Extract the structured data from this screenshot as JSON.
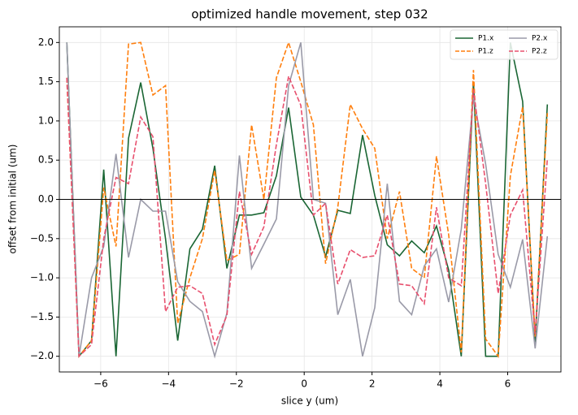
{
  "chart_data": {
    "type": "line",
    "title": "optimized handle movement, step 032",
    "xlabel": "slice y (um)",
    "ylabel": "offset from initial (um)",
    "x": [
      -7.0,
      -6.64,
      -6.27,
      -5.91,
      -5.55,
      -5.18,
      -4.82,
      -4.46,
      -4.09,
      -3.73,
      -3.37,
      -3.0,
      -2.64,
      -2.28,
      -1.91,
      -1.55,
      -1.19,
      -0.82,
      -0.46,
      -0.1,
      0.27,
      0.63,
      0.99,
      1.36,
      1.72,
      2.08,
      2.45,
      2.81,
      3.17,
      3.54,
      3.9,
      4.26,
      4.63,
      4.99,
      5.35,
      5.72,
      6.08,
      6.44,
      6.81,
      7.17
    ],
    "series": [
      {
        "name": "P1.x",
        "color": "#1a6634",
        "linestyle": "solid",
        "values": [
          2.0,
          -2.0,
          -1.8,
          0.38,
          -2.0,
          0.78,
          1.49,
          0.65,
          -0.5,
          -1.8,
          -0.63,
          -0.38,
          0.43,
          -0.88,
          -0.2,
          -0.2,
          -0.17,
          0.3,
          1.17,
          0.03,
          -0.2,
          -0.73,
          -0.14,
          -0.18,
          0.82,
          0.05,
          -0.58,
          -0.72,
          -0.53,
          -0.68,
          -0.34,
          -0.9,
          -2.0,
          1.5,
          -2.0,
          -2.0,
          2.0,
          1.25,
          -1.82,
          1.21
        ]
      },
      {
        "name": "P1.z",
        "color": "#ff7f0e",
        "linestyle": "dashed",
        "values": [
          1.55,
          -2.0,
          -1.8,
          0.15,
          -0.6,
          1.98,
          2.0,
          1.33,
          1.45,
          -1.58,
          -1.0,
          -0.5,
          0.37,
          -0.78,
          -0.7,
          0.95,
          0.0,
          1.55,
          2.0,
          1.5,
          0.95,
          -0.82,
          -0.1,
          1.21,
          0.9,
          0.65,
          -0.5,
          0.1,
          -0.88,
          -1.0,
          0.55,
          -0.45,
          -1.95,
          1.65,
          -1.78,
          -2.0,
          0.3,
          1.18,
          -1.75,
          1.1
        ]
      },
      {
        "name": "P2.x",
        "color": "#9a9aa8",
        "linestyle": "solid",
        "values": [
          2.0,
          -2.0,
          -1.0,
          -0.6,
          0.58,
          -0.74,
          0.0,
          -0.15,
          -0.15,
          -1.05,
          -1.3,
          -1.43,
          -2.0,
          -1.45,
          0.56,
          -0.88,
          -0.57,
          -0.25,
          1.45,
          2.0,
          0.0,
          -0.05,
          -1.47,
          -1.02,
          -2.0,
          -1.38,
          0.2,
          -1.3,
          -1.47,
          -0.85,
          -0.63,
          -1.31,
          -0.38,
          1.3,
          0.45,
          -0.7,
          -1.12,
          -0.51,
          -1.9,
          -0.47
        ]
      },
      {
        "name": "P2.z",
        "color": "#e8506e",
        "linestyle": "dashed",
        "values": [
          1.55,
          -2.0,
          -1.85,
          -0.5,
          0.28,
          0.2,
          1.05,
          0.8,
          -1.43,
          -1.12,
          -1.1,
          -1.2,
          -1.85,
          -1.48,
          0.1,
          -0.7,
          -0.35,
          0.7,
          1.57,
          1.2,
          -0.2,
          -0.05,
          -1.08,
          -0.64,
          -0.74,
          -0.72,
          -0.2,
          -1.08,
          -1.1,
          -1.33,
          -0.1,
          -1.0,
          -1.1,
          1.4,
          0.2,
          -1.2,
          -0.2,
          0.12,
          -1.72,
          0.52
        ]
      }
    ],
    "xlim": [
      -7.22,
      7.57
    ],
    "ylim": [
      -2.2,
      2.2
    ],
    "xticks": [
      {
        "value": -6,
        "label": "−6"
      },
      {
        "value": -4,
        "label": "−4"
      },
      {
        "value": -2,
        "label": "−2"
      },
      0,
      2,
      4,
      6
    ],
    "yticks": [
      {
        "value": -2.0,
        "label": "−2.0"
      },
      {
        "value": -1.5,
        "label": "−1.5"
      },
      {
        "value": -1.0,
        "label": "−1.0"
      },
      {
        "value": -0.5,
        "label": "−0.5"
      },
      {
        "value": 0,
        "label": "0.0"
      },
      {
        "value": 0.5,
        "label": "0.5"
      },
      {
        "value": 1.0,
        "label": "1.0"
      },
      {
        "value": 1.5,
        "label": "1.5"
      },
      {
        "value": 2.0,
        "label": "2.0"
      }
    ],
    "axhline": 0,
    "grid": true,
    "legend": "upper right"
  }
}
